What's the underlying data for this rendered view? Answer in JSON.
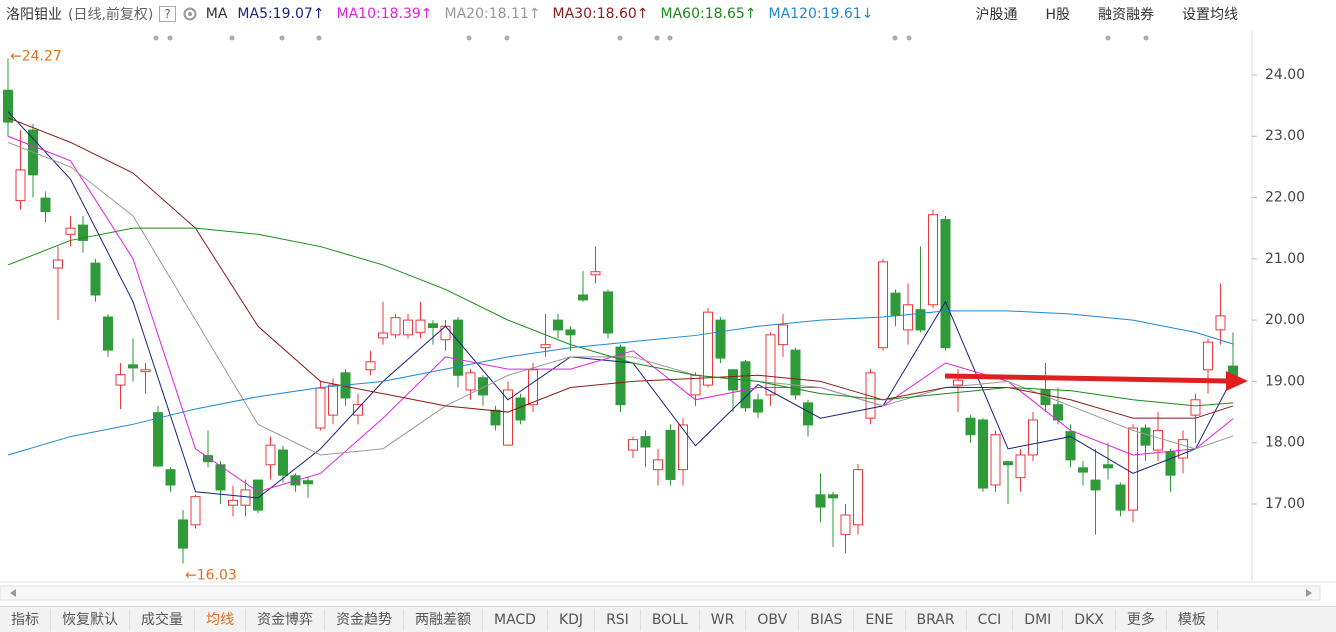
{
  "header": {
    "stock": "洛阳钼业",
    "mode": "(日线,前复权)",
    "help": "?",
    "ma_label": "MA",
    "right_items": [
      "沪股通",
      "H股",
      "融资融券",
      "设置均线"
    ]
  },
  "chart_data": {
    "type": "candlestick",
    "candles": {
      "up_color": "#e8383c",
      "down_color": "#2e9a3a",
      "open": [
        23.75,
        21.95,
        23.1,
        21.99,
        20.85,
        21.4,
        21.55,
        20.93,
        20.05,
        18.94,
        19.27,
        19.16,
        18.49,
        17.56,
        16.74,
        16.66,
        17.79,
        17.64,
        16.98,
        16.98,
        17.39,
        17.64,
        17.88,
        17.46,
        17.38,
        18.24,
        18.45,
        19.14,
        18.45,
        19.19,
        19.71,
        19.76,
        19.76,
        19.8,
        19.94,
        19.68,
        20.0,
        18.86,
        19.06,
        18.53,
        17.96,
        18.73,
        18.62,
        19.55,
        20.0,
        19.84,
        20.41,
        20.74,
        20.46,
        19.56,
        17.88,
        18.1,
        17.56,
        18.2,
        17.56,
        18.78,
        18.94,
        20.0,
        19.19,
        19.32,
        18.7,
        18.78,
        19.6,
        19.51,
        18.65,
        17.15,
        17.15,
        16.5,
        16.66,
        18.4,
        19.55,
        20.44,
        19.84,
        20.17,
        20.25,
        21.64,
        18.94,
        18.4,
        18.37,
        17.31,
        17.69,
        17.43,
        17.8,
        18.86,
        18.62,
        18.18,
        17.59,
        17.39,
        17.64,
        17.31,
        16.9,
        18.24,
        17.88,
        17.85,
        17.75,
        18.45,
        19.19,
        19.84,
        19.25
      ],
      "high": [
        24.27,
        23.1,
        23.2,
        22.1,
        21.2,
        21.7,
        21.7,
        21.0,
        20.1,
        19.3,
        19.7,
        19.3,
        18.6,
        17.6,
        16.9,
        17.15,
        18.2,
        17.7,
        17.3,
        17.4,
        17.4,
        18.1,
        17.95,
        17.5,
        17.45,
        19.0,
        19.05,
        19.2,
        18.8,
        19.5,
        20.3,
        20.1,
        20.1,
        20.3,
        20.0,
        20.0,
        20.05,
        19.2,
        19.1,
        18.6,
        19.0,
        18.8,
        19.3,
        20.1,
        20.1,
        19.9,
        20.8,
        21.2,
        20.5,
        19.6,
        18.1,
        18.2,
        17.9,
        18.3,
        18.4,
        19.15,
        20.2,
        20.05,
        19.2,
        19.35,
        18.8,
        19.8,
        20.1,
        19.55,
        18.7,
        17.5,
        17.2,
        17.0,
        17.65,
        19.2,
        21.0,
        20.5,
        20.6,
        21.2,
        21.8,
        21.7,
        19.2,
        18.45,
        18.4,
        18.2,
        17.7,
        17.9,
        18.5,
        19.3,
        18.9,
        18.3,
        17.7,
        17.9,
        18.0,
        17.35,
        18.3,
        18.3,
        18.5,
        17.9,
        18.2,
        18.8,
        19.7,
        20.6,
        19.8
      ],
      "low": [
        23.0,
        21.8,
        22.0,
        21.6,
        20.0,
        21.2,
        21.1,
        20.3,
        19.4,
        18.55,
        19.0,
        18.8,
        17.6,
        17.2,
        16.03,
        16.6,
        17.6,
        17.0,
        16.8,
        16.8,
        16.85,
        17.4,
        17.35,
        17.2,
        17.1,
        18.2,
        18.3,
        18.6,
        18.3,
        19.1,
        19.6,
        19.7,
        19.7,
        19.7,
        19.6,
        19.5,
        18.9,
        18.7,
        18.6,
        18.2,
        17.95,
        18.3,
        18.5,
        19.4,
        19.7,
        19.5,
        20.3,
        20.6,
        19.7,
        18.5,
        17.75,
        17.6,
        17.3,
        17.3,
        17.3,
        18.6,
        18.9,
        19.3,
        18.5,
        18.5,
        18.4,
        18.6,
        19.4,
        18.7,
        18.1,
        16.7,
        16.3,
        16.2,
        16.5,
        18.3,
        19.5,
        19.9,
        19.6,
        19.8,
        20.2,
        19.5,
        18.5,
        18.0,
        17.2,
        17.2,
        17.0,
        17.2,
        17.7,
        18.5,
        18.3,
        17.6,
        17.3,
        16.5,
        17.4,
        16.8,
        16.7,
        17.7,
        17.7,
        17.2,
        17.5,
        18.0,
        18.8,
        19.6,
        18.9
      ],
      "close": [
        23.23,
        22.45,
        22.37,
        21.77,
        20.98,
        21.5,
        21.3,
        20.41,
        19.51,
        19.11,
        19.22,
        19.19,
        17.62,
        17.31,
        16.28,
        17.12,
        17.69,
        17.23,
        17.06,
        17.23,
        16.9,
        17.96,
        17.47,
        17.31,
        17.33,
        18.89,
        18.94,
        18.73,
        18.62,
        19.32,
        19.79,
        20.04,
        20.0,
        20.0,
        19.88,
        19.9,
        19.1,
        19.14,
        18.78,
        18.29,
        18.86,
        18.37,
        19.19,
        19.6,
        19.84,
        19.76,
        20.33,
        20.79,
        19.79,
        18.62,
        18.05,
        17.93,
        17.72,
        17.4,
        18.29,
        19.1,
        20.13,
        19.38,
        18.86,
        18.57,
        18.5,
        19.76,
        19.92,
        18.78,
        18.29,
        16.95,
        17.1,
        16.82,
        17.56,
        19.14,
        20.95,
        20.08,
        20.25,
        19.84,
        21.72,
        19.55,
        19.02,
        18.13,
        17.26,
        18.13,
        17.64,
        17.8,
        18.37,
        18.62,
        18.37,
        17.72,
        17.52,
        17.23,
        17.59,
        16.9,
        18.24,
        17.96,
        18.2,
        17.47,
        18.05,
        18.7,
        19.64,
        20.07,
        18.94
      ]
    },
    "ma_lines": {
      "x": [
        0,
        5,
        10,
        15,
        20,
        25,
        30,
        35,
        40,
        45,
        50,
        55,
        60,
        65,
        70,
        75,
        80,
        85,
        90,
        95,
        98
      ],
      "series": [
        {
          "name": "MA5:19.07↑",
          "color": "#1a237e",
          "values": [
            23.4,
            22.3,
            20.3,
            17.2,
            17.1,
            17.9,
            19.0,
            19.9,
            18.7,
            19.4,
            19.3,
            17.95,
            18.95,
            18.4,
            18.6,
            20.3,
            17.9,
            18.1,
            17.5,
            17.9,
            19.07
          ]
        },
        {
          "name": "MA10:18.39↑",
          "color": "#e020e0",
          "values": [
            23.0,
            22.6,
            21.0,
            17.9,
            17.2,
            17.5,
            18.4,
            19.4,
            19.2,
            19.2,
            19.5,
            18.7,
            18.9,
            18.9,
            18.6,
            19.3,
            19.0,
            18.2,
            17.8,
            17.9,
            18.39
          ]
        },
        {
          "name": "MA20:18.11↑",
          "color": "#999999",
          "values": [
            22.9,
            22.5,
            21.7,
            20.0,
            18.3,
            17.8,
            17.9,
            18.6,
            19.1,
            19.4,
            19.4,
            19.1,
            19.0,
            18.9,
            18.6,
            18.9,
            19.0,
            18.6,
            18.2,
            17.9,
            18.11
          ]
        },
        {
          "name": "MA30:18.60↑",
          "color": "#8b1a1a",
          "values": [
            23.3,
            22.9,
            22.4,
            21.5,
            19.9,
            19.0,
            18.8,
            18.6,
            18.5,
            18.9,
            19.0,
            19.05,
            19.1,
            19.0,
            18.7,
            18.9,
            18.9,
            18.7,
            18.4,
            18.4,
            18.6
          ]
        },
        {
          "name": "MA60:18.65↑",
          "color": "#1a8a1a",
          "values": [
            20.9,
            21.3,
            21.5,
            21.5,
            21.4,
            21.2,
            20.9,
            20.5,
            20.0,
            19.6,
            19.3,
            19.1,
            19.0,
            18.8,
            18.7,
            18.8,
            18.9,
            18.85,
            18.7,
            18.6,
            18.65
          ]
        },
        {
          "name": "MA120:19.61↓",
          "color": "#1e88d0",
          "values": [
            17.8,
            18.1,
            18.3,
            18.55,
            18.75,
            18.9,
            19.0,
            19.2,
            19.4,
            19.55,
            19.65,
            19.75,
            19.9,
            20.0,
            20.05,
            20.15,
            20.15,
            20.1,
            20.0,
            19.8,
            19.61
          ]
        }
      ]
    },
    "max_label": "←24.27",
    "min_label": "←16.03",
    "ylim": [
      15.76,
      24.57
    ],
    "yticks": [
      {
        "value": 17,
        "label": "17.00"
      },
      {
        "value": 18,
        "label": "18.00"
      },
      {
        "value": 19,
        "label": "19.00"
      },
      {
        "value": 20,
        "label": "20.00"
      },
      {
        "value": 21,
        "label": "21.00"
      },
      {
        "value": 22,
        "label": "22.00"
      },
      {
        "value": 23,
        "label": "23.00"
      },
      {
        "value": 24,
        "label": "24.00"
      }
    ],
    "grid": false
  },
  "tabs": {
    "items": [
      "指标",
      "恢复默认",
      "成交量",
      "均线",
      "资金博弈",
      "资金趋势",
      "两融差额",
      "MACD",
      "KDJ",
      "RSI",
      "BOLL",
      "WR",
      "OBV",
      "BIAS",
      "ENE",
      "BRAR",
      "CCI",
      "DMI",
      "DKX",
      "更多",
      "模板"
    ],
    "active": "均线"
  }
}
